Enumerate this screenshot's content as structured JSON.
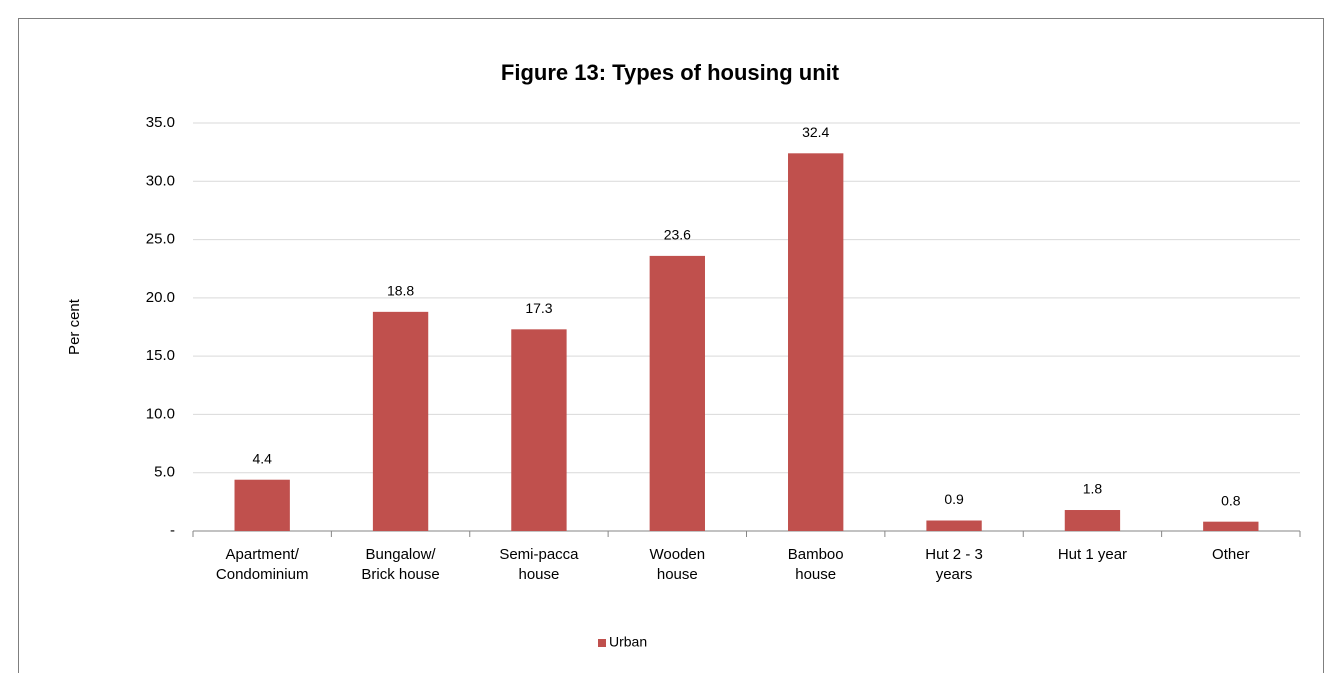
{
  "chart_data": {
    "type": "bar",
    "title": "Figure 13:  Types of housing unit",
    "y_label": "Per cent",
    "categories": [
      [
        "Apartment/",
        "Condominium"
      ],
      [
        "Bungalow/",
        "Brick house"
      ],
      [
        "Semi-pacca",
        "house"
      ],
      [
        "Wooden",
        "house"
      ],
      [
        "Bamboo",
        "house"
      ],
      [
        "Hut 2 - 3",
        "years"
      ],
      [
        "Hut 1 year"
      ],
      [
        "Other"
      ]
    ],
    "series": [
      {
        "name": "Urban",
        "color": "#c0504d",
        "values": [
          4.4,
          18.8,
          17.3,
          23.6,
          32.4,
          0.9,
          1.8,
          0.8
        ]
      }
    ],
    "ylim": [
      0,
      35
    ],
    "yticks": [
      {
        "value": 0,
        "label": "-"
      },
      {
        "value": 5,
        "label": "5.0"
      },
      {
        "value": 10,
        "label": "10.0"
      },
      {
        "value": 15,
        "label": "15.0"
      },
      {
        "value": 20,
        "label": "20.0"
      },
      {
        "value": 25,
        "label": "25.0"
      },
      {
        "value": 30,
        "label": "30.0"
      },
      {
        "value": 35,
        "label": "35.0"
      }
    ],
    "grid": true,
    "legend": "bottom"
  }
}
